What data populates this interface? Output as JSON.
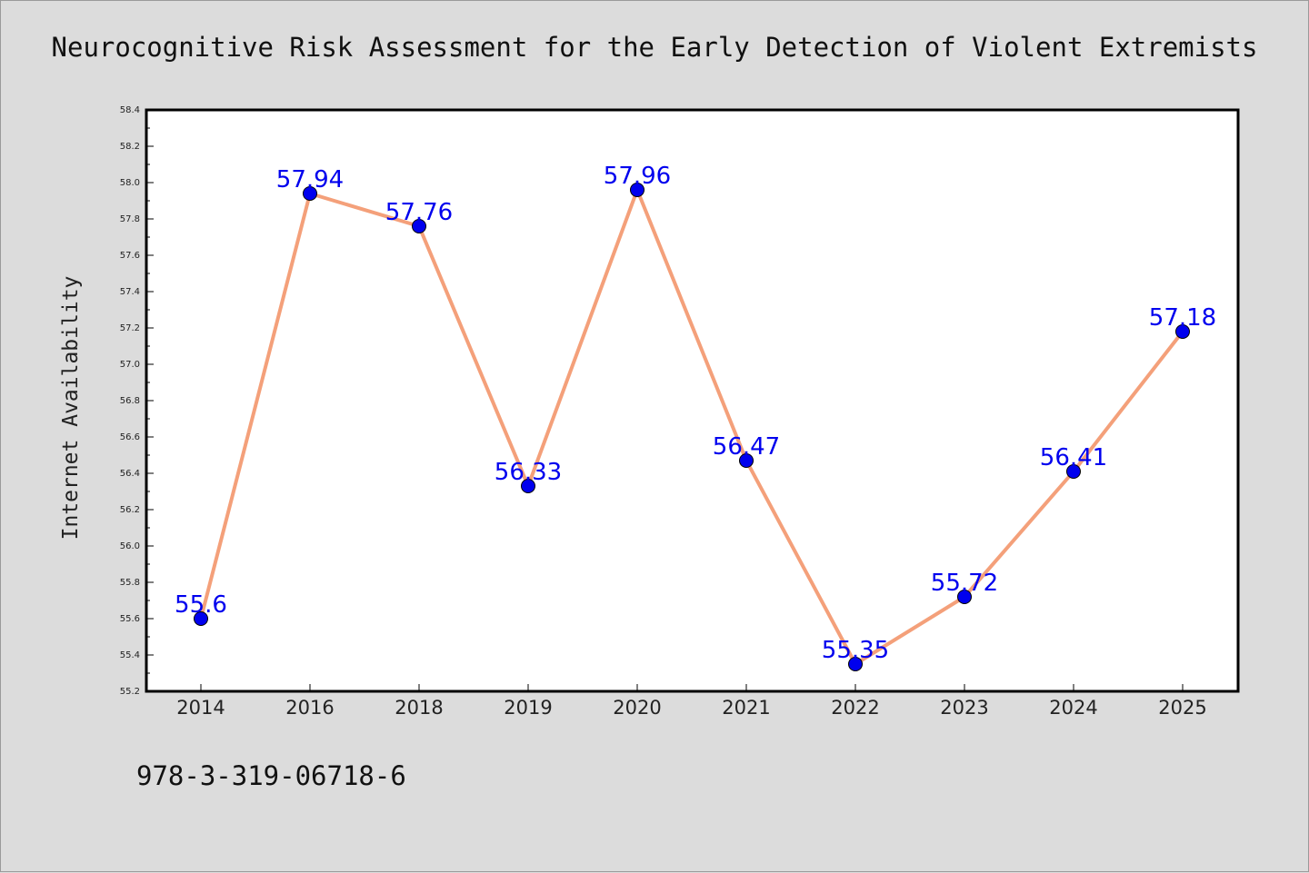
{
  "figure": {
    "title": "Neurocognitive Risk Assessment for the Early Detection of Violent Extremists",
    "footer": "978-3-319-06718-6"
  },
  "chart_data": {
    "type": "line",
    "title": "Neurocognitive Risk Assessment for the Early Detection of Violent Extremists",
    "xlabel": "",
    "ylabel": "Internet Availability",
    "categories": [
      "2014",
      "2016",
      "2018",
      "2019",
      "2020",
      "2021",
      "2022",
      "2023",
      "2024",
      "2025"
    ],
    "series": [
      {
        "values": [
          55.6,
          57.94,
          57.76,
          56.33,
          57.96,
          56.47,
          55.35,
          55.72,
          56.41,
          57.18
        ],
        "labels": [
          "55.6",
          "57.94",
          "57.76",
          "56.33",
          "57.96",
          "56.47",
          "55.35",
          "55.72",
          "56.41",
          "57.18"
        ]
      }
    ],
    "ylim": [
      55.2,
      58.4
    ],
    "yticks": [
      "55.2",
      "55.4",
      "55.6",
      "55.8",
      "56.0",
      "56.2",
      "56.4",
      "56.6",
      "56.8",
      "57.0",
      "57.2",
      "57.4",
      "57.6",
      "57.8",
      "58.0",
      "58.2",
      "58.4"
    ],
    "grid": false,
    "colors": {
      "line": "#f4a07a",
      "marker": "#0000ee",
      "data_label": "#0000ee"
    }
  }
}
